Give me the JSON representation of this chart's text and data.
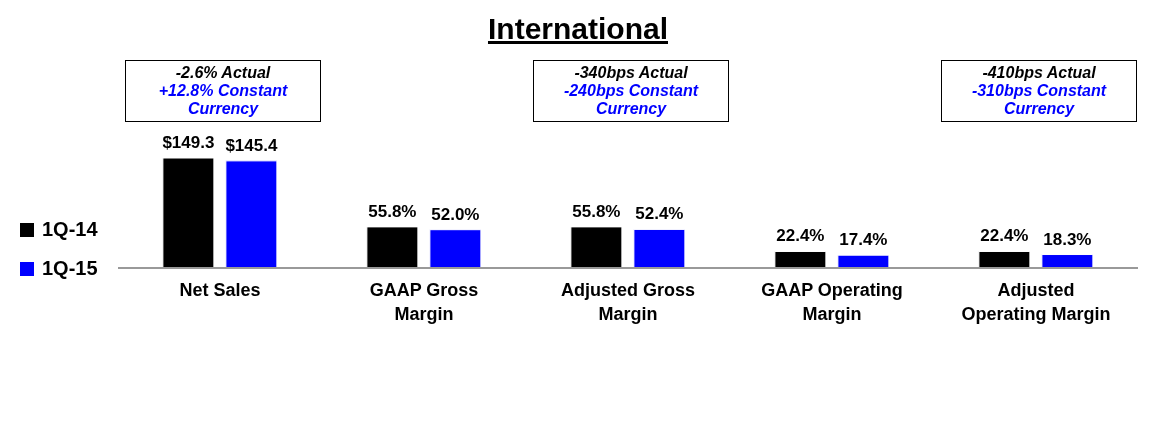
{
  "chart_data": {
    "type": "bar",
    "title": "International",
    "categories": [
      "Net Sales",
      "GAAP Gross Margin",
      "Adjusted Gross Margin",
      "GAAP Operating Margin",
      "Adjusted Operating Margin"
    ],
    "series": [
      {
        "name": "1Q-14",
        "color": "#000000",
        "values": [
          149.3,
          55.8,
          55.8,
          22.4,
          22.4
        ],
        "value_labels": [
          "$149.3",
          "55.8%",
          "55.8%",
          "22.4%",
          "22.4%"
        ]
      },
      {
        "name": "1Q-15",
        "color": "#0000ff",
        "values": [
          145.4,
          52.0,
          52.4,
          17.4,
          18.3
        ],
        "value_labels": [
          "$145.4",
          "52.0%",
          "52.4%",
          "17.4%",
          "18.3%"
        ]
      }
    ],
    "annotations": [
      "-2.6% Actual",
      "+12.8% Constant Currency",
      "-340bps Actual",
      "-240bps Constant Currency",
      "-410bps Actual",
      "-310bps Constant Currency"
    ],
    "legend": "left"
  }
}
